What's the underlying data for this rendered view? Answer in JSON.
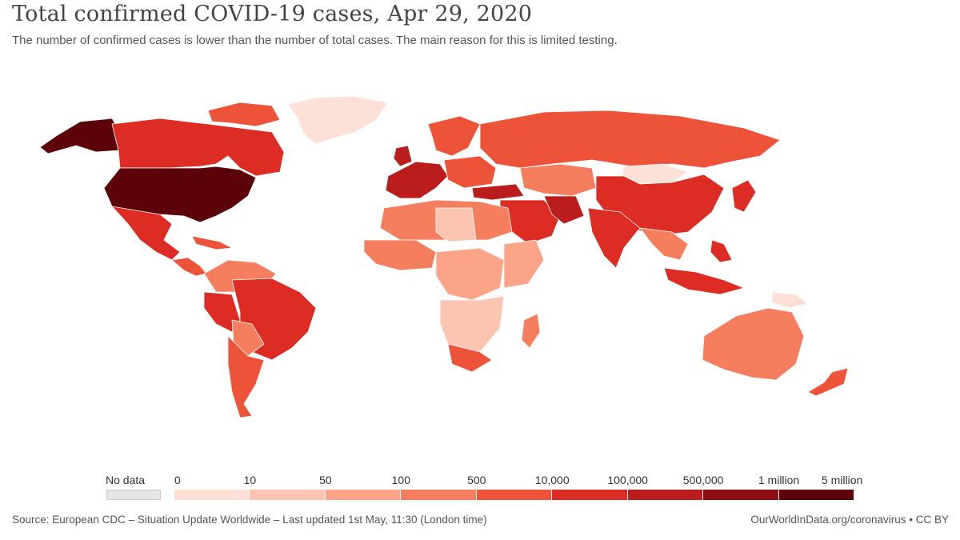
{
  "title": "Total confirmed COVID-19 cases, Apr 29, 2020",
  "subtitle": "The number of confirmed cases is lower than the number of total cases. The main reason for this is limited testing.",
  "legend": {
    "no_data_label": "No data",
    "no_data_color": "#e6e6e6",
    "ticks": [
      "0",
      "10",
      "50",
      "100",
      "500",
      "10,000",
      "100,000",
      "500,000",
      "1 million",
      "5 million"
    ],
    "colors": [
      "#fde0d6",
      "#fcc5b1",
      "#fba488",
      "#f57e5f",
      "#ec5339",
      "#dc2c23",
      "#bb1c1c",
      "#8d0f13",
      "#5c0309"
    ]
  },
  "source": "Source: European CDC – Situation Update Worldwide – Last updated 1st May, 11:30 (London time)",
  "credit": "OurWorldInData.org/coronavirus • CC BY"
}
